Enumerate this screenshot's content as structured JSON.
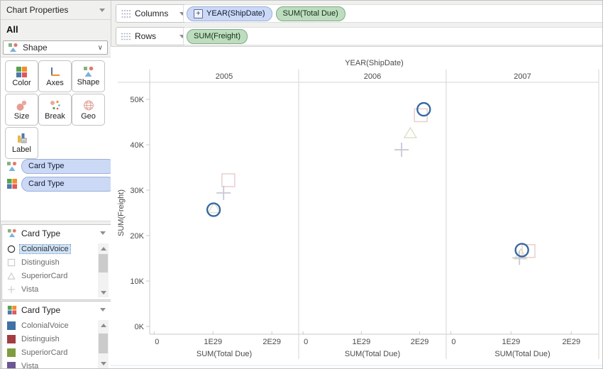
{
  "sidebar": {
    "title": "Chart Properties",
    "sheet_label": "All",
    "shape_dropdown": {
      "value": "Shape"
    },
    "buttons": [
      {
        "label": "Color"
      },
      {
        "label": "Axes"
      },
      {
        "label": "Shape"
      },
      {
        "label": "Size"
      },
      {
        "label": "Break"
      },
      {
        "label": "Geo"
      },
      {
        "label": "Label"
      }
    ],
    "field_shelves": [
      {
        "pill": "Card Type"
      },
      {
        "pill": "Card Type"
      }
    ],
    "shape_legend": {
      "title": "Card Type",
      "items": [
        {
          "shape": "circle",
          "label": "ColonialVoice",
          "selected": true
        },
        {
          "shape": "square",
          "label": "Distinguish",
          "selected": false
        },
        {
          "shape": "triangle",
          "label": "SuperiorCard",
          "selected": false
        },
        {
          "shape": "plus",
          "label": "Vista",
          "selected": false
        }
      ]
    },
    "color_legend": {
      "title": "Card Type",
      "items": [
        {
          "color": "#4070a4",
          "label": "ColonialVoice"
        },
        {
          "color": "#a43c42",
          "label": "Distinguish"
        },
        {
          "color": "#7f9d3f",
          "label": "SuperiorCard"
        },
        {
          "color": "#6b5793",
          "label": "Vista"
        }
      ]
    }
  },
  "shelves": {
    "columns": {
      "label": "Columns",
      "pills": [
        {
          "text": "YEAR(ShipDate)"
        },
        {
          "text": "SUM(Total Due)"
        }
      ]
    },
    "rows": {
      "label": "Rows",
      "pills": [
        {
          "text": "SUM(Freight)"
        }
      ]
    }
  },
  "chart_data": {
    "type": "scatter",
    "title": "YEAR(ShipDate)",
    "panes": [
      "2005",
      "2006",
      "2007"
    ],
    "xlabel": "SUM(Total Due)",
    "ylabel": "SUM(Freight)",
    "x_unit": "E29",
    "x_ticks": [
      {
        "v": 0,
        "label": "0"
      },
      {
        "v": 1,
        "label": "1E29"
      },
      {
        "v": 2,
        "label": "2E29"
      }
    ],
    "y_ticks": [
      {
        "v": 0,
        "label": "0K"
      },
      {
        "v": 10000,
        "label": "10K"
      },
      {
        "v": 20000,
        "label": "20K"
      },
      {
        "v": 30000,
        "label": "30K"
      },
      {
        "v": 40000,
        "label": "40K"
      },
      {
        "v": 50000,
        "label": "50K"
      }
    ],
    "x_range_e29": [
      0,
      2.45
    ],
    "y_range": [
      0,
      53000
    ],
    "grid": false,
    "series": [
      {
        "name": "ColonialVoice",
        "shape": "circle",
        "color": "#3465a0",
        "highlighted": true,
        "points": [
          {
            "pane": "2005",
            "x": 1.01,
            "y": 25700
          },
          {
            "pane": "2006",
            "x": 2.07,
            "y": 47800
          },
          {
            "pane": "2007",
            "x": 1.18,
            "y": 16800
          }
        ]
      },
      {
        "name": "Distinguish",
        "shape": "square",
        "color": "#e7d0ca",
        "highlighted": false,
        "points": [
          {
            "pane": "2005",
            "x": 1.26,
            "y": 32200
          },
          {
            "pane": "2006",
            "x": 2.02,
            "y": 46500
          },
          {
            "pane": "2007",
            "x": 1.29,
            "y": 16600
          }
        ]
      },
      {
        "name": "SuperiorCard",
        "shape": "triangle",
        "color": "#dfe0cc",
        "highlighted": false,
        "points": [
          {
            "pane": "2005",
            "x": 1.02,
            "y": 26000
          },
          {
            "pane": "2006",
            "x": 1.84,
            "y": 42500
          },
          {
            "pane": "2007",
            "x": 1.16,
            "y": 15800
          }
        ]
      },
      {
        "name": "Vista",
        "shape": "plus",
        "color": "#c7c9d6",
        "highlighted": false,
        "points": [
          {
            "pane": "2005",
            "x": 1.18,
            "y": 29400
          },
          {
            "pane": "2006",
            "x": 1.69,
            "y": 38900
          },
          {
            "pane": "2007",
            "x": 1.14,
            "y": 15100
          }
        ]
      }
    ]
  }
}
